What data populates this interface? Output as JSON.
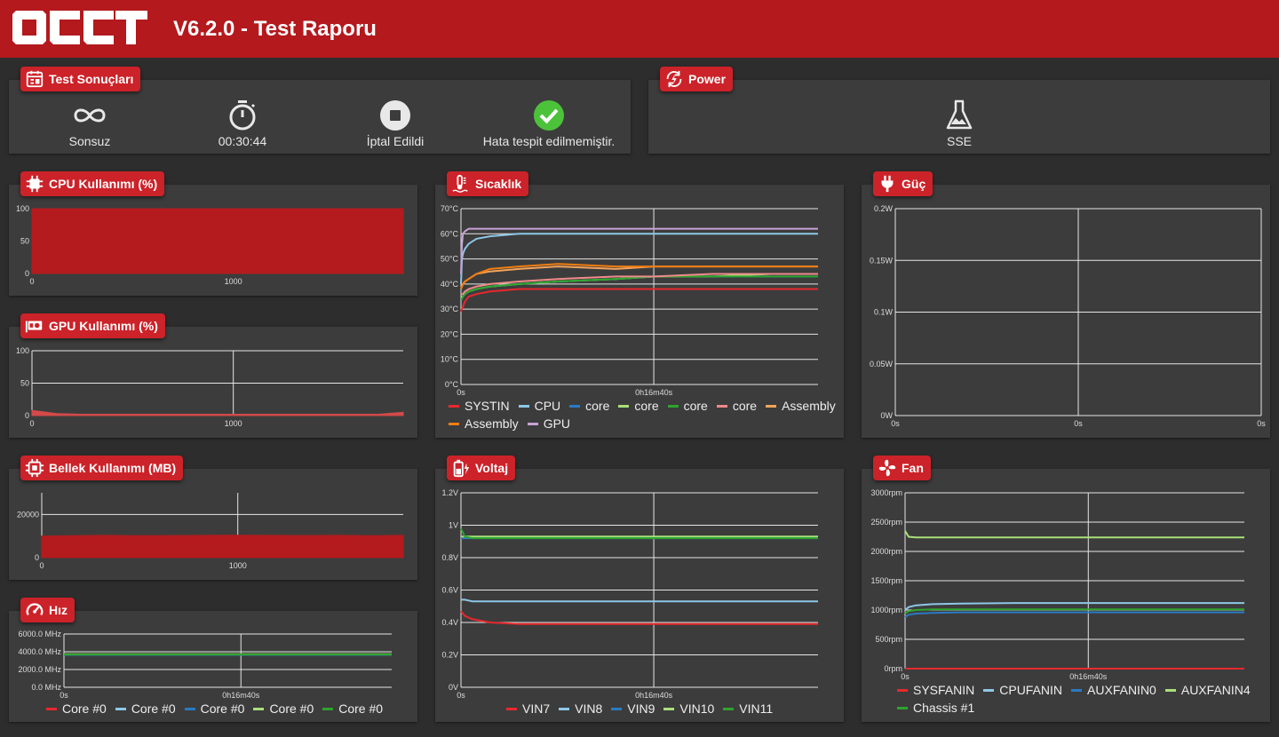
{
  "header": {
    "logo_text": "OCCT",
    "title": "V6.2.0 - Test Raporu"
  },
  "test_results": {
    "title": "Test Sonuçları",
    "items": [
      {
        "icon": "infinity-icon",
        "label": "Sonsuz"
      },
      {
        "icon": "stopwatch-icon",
        "label": "00:30:44"
      },
      {
        "icon": "stop-icon",
        "label": "İptal Edildi"
      },
      {
        "icon": "check-icon",
        "label": "Hata tespit edilmemiştir."
      }
    ]
  },
  "power_panel": {
    "title": "Power",
    "mode_icon": "flask-icon",
    "mode": "SSE"
  },
  "colors": {
    "header": "#b3191d",
    "badge": "#cc2229",
    "fill": "#b31b1e",
    "ok": "#4cc23a"
  },
  "cpu": {
    "title": "CPU Kullanımı (%)",
    "chart_data": {
      "type": "area",
      "series": [
        {
          "color": "#b31b1e",
          "values": [
            100,
            100,
            100,
            100,
            100,
            100,
            100,
            100
          ]
        }
      ],
      "ylim": [
        0,
        100
      ],
      "yticks": [
        "0",
        "50",
        "100"
      ],
      "xticks": [
        "0",
        "1000"
      ],
      "xmax": 1844
    }
  },
  "gpu": {
    "title": "GPU Kullanımı (%)",
    "chart_data": {
      "type": "area",
      "series": [
        {
          "color": "#d24a4a",
          "values": [
            8,
            3,
            2,
            2,
            2,
            2,
            2,
            2,
            2,
            2,
            2,
            2,
            2,
            2,
            2,
            5
          ]
        }
      ],
      "ylim": [
        0,
        100
      ],
      "yticks": [
        "0",
        "50",
        "100"
      ],
      "xticks": [
        "0",
        "1000"
      ],
      "xmax": 1844
    }
  },
  "memory": {
    "title": "Bellek Kullanımı (MB)",
    "chart_data": {
      "type": "area",
      "series": [
        {
          "color": "#b31b1e",
          "values": [
            10000,
            10200,
            10300,
            10200,
            10250,
            10300,
            10400,
            10300,
            10250,
            10300,
            10200,
            10300
          ]
        }
      ],
      "ylim": [
        0,
        30000
      ],
      "yticks": [
        "0",
        "20000"
      ],
      "ytick_values": [
        0,
        20000
      ],
      "xticks": [
        "0",
        "1000"
      ],
      "xmax": 1844
    }
  },
  "speed": {
    "title": "Hız",
    "chart_data": {
      "type": "line",
      "ylim": [
        0,
        6000
      ],
      "yticks": [
        "0.0 MHz",
        "2000.0 MHz",
        "4000.0 MHz",
        "6000.0 MHz"
      ],
      "ytick_values": [
        0,
        2000,
        4000,
        6000
      ],
      "xticks": [
        "0s",
        "0h16m40s"
      ],
      "series": [
        {
          "name": "Core #0",
          "color": "#e8282d",
          "values": [
            3700,
            3700,
            3700
          ]
        },
        {
          "name": "Core #0",
          "color": "#8ec7e8",
          "values": [
            3680,
            3680,
            3680
          ]
        },
        {
          "name": "Core #0",
          "color": "#2a7ac3",
          "values": [
            3650,
            3650,
            3650
          ]
        },
        {
          "name": "Core #0",
          "color": "#a8e07a",
          "values": [
            3720,
            3720,
            3720
          ]
        },
        {
          "name": "Core #0",
          "color": "#2ea32e",
          "values": [
            3690,
            3690,
            3690
          ]
        }
      ]
    }
  },
  "temperature": {
    "title": "Sıcaklık",
    "chart_data": {
      "type": "line",
      "ylim": [
        0,
        70
      ],
      "yticks": [
        "0°C",
        "10°C",
        "20°C",
        "30°C",
        "40°C",
        "50°C",
        "60°C",
        "70°C"
      ],
      "ytick_values": [
        0,
        10,
        20,
        30,
        40,
        50,
        60,
        70
      ],
      "xticks": [
        "0s",
        "0h16m40s"
      ],
      "x": [
        0,
        5,
        10,
        20,
        40,
        80,
        150,
        300,
        500,
        800,
        1000,
        1300,
        1600,
        1844
      ],
      "series": [
        {
          "name": "SYSTIN",
          "color": "#e8282d",
          "values": [
            29,
            30,
            31,
            33,
            35,
            36,
            37,
            38,
            38,
            38,
            38,
            38,
            38,
            38
          ]
        },
        {
          "name": "CPU",
          "color": "#8ec7e8",
          "values": [
            40,
            50,
            52,
            54,
            56,
            58,
            59,
            60,
            60,
            60,
            60,
            60,
            60,
            60
          ]
        },
        {
          "name": "core",
          "color": "#2a7ac3",
          "values": [
            35,
            35,
            35,
            36,
            37,
            38,
            39,
            40,
            41,
            42,
            43,
            43,
            43,
            43
          ]
        },
        {
          "name": "core",
          "color": "#a8e07a",
          "values": [
            35,
            35,
            35,
            36,
            37,
            38,
            39,
            40,
            41,
            42,
            43,
            43,
            44,
            44
          ]
        },
        {
          "name": "core",
          "color": "#2ea32e",
          "values": [
            34,
            34,
            35,
            36,
            37,
            38,
            39,
            40,
            41,
            42,
            43,
            43,
            43,
            43
          ]
        },
        {
          "name": "core",
          "color": "#f08a8a",
          "values": [
            36,
            36,
            36,
            37,
            38,
            39,
            40,
            41,
            42,
            43,
            43,
            44,
            44,
            44
          ]
        },
        {
          "name": "Assembly",
          "color": "#f2a45c",
          "values": [
            38,
            39,
            40,
            41,
            42,
            44,
            45,
            46,
            47,
            46,
            47,
            47,
            47,
            47
          ]
        },
        {
          "name": "Assembly",
          "color": "#f07d12",
          "values": [
            38,
            39,
            40,
            41,
            42,
            44,
            46,
            47,
            48,
            47,
            47,
            47,
            47,
            47
          ]
        },
        {
          "name": "GPU",
          "color": "#c8a2d8",
          "values": [
            44,
            56,
            60,
            61,
            62,
            62,
            62,
            62,
            62,
            62,
            62,
            62,
            62,
            62
          ]
        }
      ]
    }
  },
  "power_chart": {
    "title": "Güç",
    "chart_data": {
      "type": "line",
      "ylim": [
        0,
        0.2
      ],
      "yticks": [
        "0W",
        "0.05W",
        "0.1W",
        "0.15W",
        "0.2W"
      ],
      "ytick_values": [
        0,
        0.05,
        0.1,
        0.15,
        0.2
      ],
      "xticks": [
        "0s",
        "0s",
        "0s"
      ],
      "series": []
    }
  },
  "voltage": {
    "title": "Voltaj",
    "chart_data": {
      "type": "line",
      "ylim": [
        0,
        1.2
      ],
      "yticks": [
        "0V",
        "0.2V",
        "0.4V",
        "0.6V",
        "0.8V",
        "1V",
        "1.2V"
      ],
      "ytick_values": [
        0,
        0.2,
        0.4,
        0.6,
        0.8,
        1.0,
        1.2
      ],
      "xticks": [
        "0s",
        "0h16m40s"
      ],
      "x": [
        0,
        20,
        60,
        150,
        300,
        600,
        1000,
        1400,
        1844
      ],
      "series": [
        {
          "name": "VIN7",
          "color": "#e8282d",
          "values": [
            0.47,
            0.44,
            0.42,
            0.4,
            0.39,
            0.39,
            0.39,
            0.39,
            0.39
          ]
        },
        {
          "name": "VIN8",
          "color": "#8ec7e8",
          "values": [
            0.54,
            0.54,
            0.53,
            0.53,
            0.53,
            0.53,
            0.53,
            0.53,
            0.53
          ]
        },
        {
          "name": "VIN9",
          "color": "#2a7ac3",
          "values": [
            0.92,
            0.92,
            0.92,
            0.92,
            0.92,
            0.92,
            0.92,
            0.92,
            0.92
          ]
        },
        {
          "name": "VIN10",
          "color": "#a8e07a",
          "values": [
            0.93,
            0.93,
            0.93,
            0.93,
            0.93,
            0.93,
            0.93,
            0.93,
            0.93
          ]
        },
        {
          "name": "VIN11",
          "color": "#2ea32e",
          "values": [
            0.98,
            0.93,
            0.92,
            0.92,
            0.92,
            0.92,
            0.92,
            0.92,
            0.92
          ]
        }
      ]
    }
  },
  "fan": {
    "title": "Fan",
    "chart_data": {
      "type": "line",
      "ylim": [
        0,
        3000
      ],
      "yticks": [
        "0rpm",
        "500rpm",
        "1000rpm",
        "1500rpm",
        "2000rpm",
        "2500rpm",
        "3000rpm"
      ],
      "ytick_values": [
        0,
        500,
        1000,
        1500,
        2000,
        2500,
        3000
      ],
      "xticks": [
        "0s",
        "0h16m40s"
      ],
      "x": [
        0,
        20,
        60,
        150,
        300,
        600,
        1000,
        1400,
        1844
      ],
      "series": [
        {
          "name": "SYSFANIN",
          "color": "#e8282d",
          "values": [
            0,
            0,
            0,
            0,
            0,
            0,
            0,
            0,
            0
          ]
        },
        {
          "name": "CPUFANIN",
          "color": "#8ec7e8",
          "values": [
            1000,
            1050,
            1080,
            1100,
            1110,
            1120,
            1120,
            1120,
            1120
          ]
        },
        {
          "name": "AUXFANIN0",
          "color": "#2a7ac3",
          "values": [
            880,
            920,
            940,
            950,
            960,
            960,
            960,
            960,
            960
          ]
        },
        {
          "name": "AUXFANIN4",
          "color": "#a8e07a",
          "values": [
            2350,
            2250,
            2240,
            2240,
            2240,
            2240,
            2240,
            2240,
            2240
          ]
        },
        {
          "name": "Chassis #1",
          "color": "#2ea32e",
          "values": [
            940,
            980,
            1000,
            1010,
            1010,
            1010,
            1010,
            1010,
            1010
          ]
        }
      ]
    }
  }
}
